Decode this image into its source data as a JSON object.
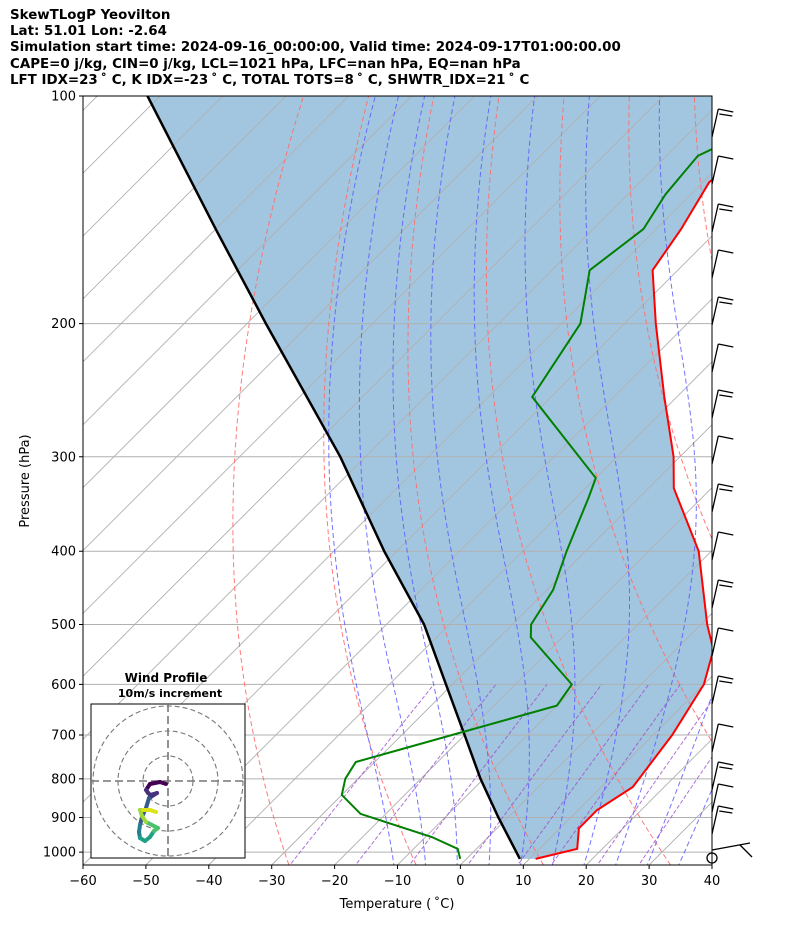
{
  "header": {
    "line1": "SkewTLogP Yeovilton",
    "line2": "Lat: 51.01   Lon: -2.64",
    "line3": "Simulation start time: 2024-09-16_00:00:00, Valid time: 2024-09-17T01:00:00.00",
    "line4": "CAPE=0 j/kg, CIN=0 j/kg, LCL=1021 hPa, LFC=nan hPa, EQ=nan hPa",
    "line5": "LFT IDX=23 ˚ C, K IDX=-23 ˚ C, TOTAL TOTS=8 ˚ C, SHWTR_IDX=21 ˚ C"
  },
  "inset": {
    "title": "Wind Profile",
    "subtitle": "10m/s increment"
  },
  "colors": {
    "temperature": "#ff0000",
    "dewpoint": "#008000",
    "parcel": "#000000",
    "cape_fill": "#a3c6e0",
    "dry_adiabat": "#ff6b6b",
    "moist_adiabat": "#5a5aff",
    "mixing_ratio": "#9a4dcc",
    "isotherm": "#b0b0b0"
  },
  "chart_data": {
    "type": "line",
    "skew": "skew-T log-p",
    "xlabel": "Temperature ( ˚C)",
    "ylabel": "Pressure (hPa)",
    "xlim": [
      -60,
      40
    ],
    "ylim": [
      1040,
      100
    ],
    "yscale": "log",
    "x_ticks": [
      "−60",
      "−50",
      "−40",
      "−30",
      "−20",
      "−10",
      "0",
      "10",
      "20",
      "30",
      "40"
    ],
    "y_ticks": [
      "100",
      "200",
      "300",
      "400",
      "500",
      "600",
      "700",
      "800",
      "900",
      "1000"
    ],
    "grid": true,
    "series": [
      {
        "role": "temperature",
        "points": [
          [
            1021,
            11
          ],
          [
            990,
            16
          ],
          [
            930,
            13
          ],
          [
            880,
            13
          ],
          [
            820,
            15
          ],
          [
            700,
            13
          ],
          [
            600,
            10
          ],
          [
            540,
            6
          ],
          [
            500,
            1
          ],
          [
            400,
            -12
          ],
          [
            330,
            -26
          ],
          [
            300,
            -31
          ],
          [
            250,
            -42
          ],
          [
            200,
            -55
          ],
          [
            170,
            -64
          ],
          [
            150,
            -66
          ],
          [
            130,
            -69
          ],
          [
            115,
            -67
          ],
          [
            100,
            -68
          ]
        ]
      },
      {
        "role": "dewpoint",
        "points": [
          [
            1021,
            -1
          ],
          [
            990,
            -3
          ],
          [
            955,
            -9
          ],
          [
            890,
            -24
          ],
          [
            840,
            -30
          ],
          [
            800,
            -32
          ],
          [
            760,
            -33
          ],
          [
            700,
            -22
          ],
          [
            640,
            -10
          ],
          [
            600,
            -11
          ],
          [
            520,
            -25
          ],
          [
            500,
            -27
          ],
          [
            450,
            -29
          ],
          [
            400,
            -33
          ],
          [
            340,
            -38
          ],
          [
            320,
            -40
          ],
          [
            250,
            -63
          ],
          [
            200,
            -67
          ],
          [
            170,
            -74
          ],
          [
            150,
            -72
          ],
          [
            135,
            -74
          ],
          [
            120,
            -75
          ],
          [
            110,
            -70
          ],
          [
            100,
            -65
          ]
        ]
      },
      {
        "role": "parcel",
        "points": [
          [
            1021,
            8.5
          ],
          [
            900,
            -1.5
          ],
          [
            800,
            -10.5
          ],
          [
            700,
            -20
          ],
          [
            600,
            -31
          ],
          [
            500,
            -44
          ],
          [
            400,
            -62
          ],
          [
            300,
            -84
          ],
          [
            200,
            -117
          ],
          [
            150,
            -140
          ],
          [
            100,
            -172
          ]
        ]
      }
    ],
    "wind_barbs": true,
    "hodograph": {
      "rings_ms": [
        10,
        20,
        30
      ]
    }
  }
}
